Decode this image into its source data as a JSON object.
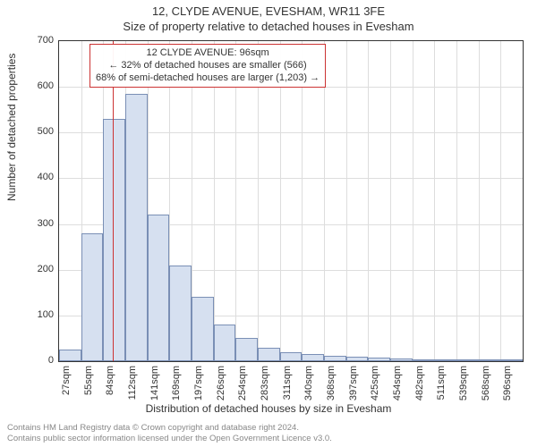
{
  "header": {
    "line1": "12, CLYDE AVENUE, EVESHAM, WR11 3FE",
    "line2": "Size of property relative to detached houses in Evesham"
  },
  "chart": {
    "type": "histogram",
    "ylabel": "Number of detached properties",
    "xlabel": "Distribution of detached houses by size in Evesham",
    "ylim": [
      0,
      700
    ],
    "ytick_step": 100,
    "yticks": [
      0,
      100,
      200,
      300,
      400,
      500,
      600,
      700
    ],
    "xticks": [
      "27sqm",
      "55sqm",
      "84sqm",
      "112sqm",
      "141sqm",
      "169sqm",
      "197sqm",
      "226sqm",
      "254sqm",
      "283sqm",
      "311sqm",
      "340sqm",
      "368sqm",
      "397sqm",
      "425sqm",
      "454sqm",
      "482sqm",
      "511sqm",
      "539sqm",
      "568sqm",
      "596sqm"
    ],
    "bins": [
      25,
      280,
      530,
      585,
      320,
      210,
      140,
      80,
      50,
      30,
      20,
      15,
      12,
      10,
      8,
      5,
      3,
      2,
      1,
      1,
      1
    ],
    "bar_fill": "#d6e0f0",
    "bar_stroke": "#7a8fb5",
    "grid_color": "#dddddd",
    "axis_color": "#333333",
    "background_color": "#ffffff",
    "marker": {
      "value_sqm": 96,
      "color": "#cc3333",
      "bin_index_after": 2
    },
    "annotation": {
      "lines": [
        "12 CLYDE AVENUE: 96sqm",
        "← 32% of detached houses are smaller (566)",
        "68% of semi-detached houses are larger (1,203) →"
      ],
      "border_color": "#cc3333"
    },
    "title_fontsize": 13,
    "label_fontsize": 12,
    "tick_fontsize": 11,
    "annotation_fontsize": 11
  },
  "footer": {
    "line1": "Contains HM Land Registry data © Crown copyright and database right 2024.",
    "line2": "Contains public sector information licensed under the Open Government Licence v3.0."
  }
}
